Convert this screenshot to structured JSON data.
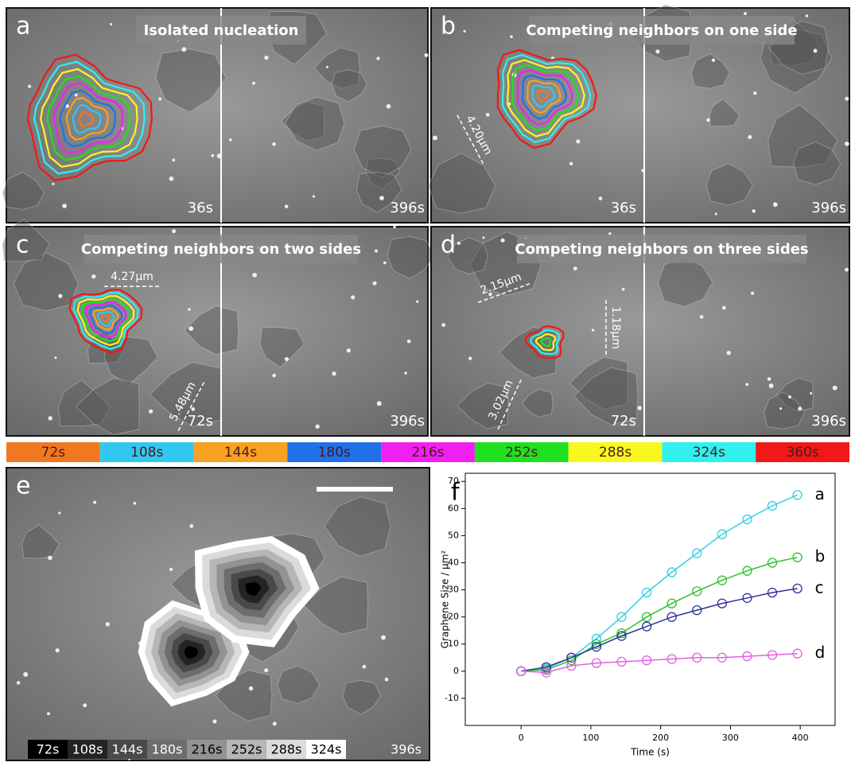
{
  "panels": [
    {
      "letter": "a",
      "title": "Isolated nucleation",
      "times": [
        "36s",
        "396s"
      ]
    },
    {
      "letter": "b",
      "title": "Competing neighbors on one side",
      "times": [
        "36s",
        "396s"
      ],
      "measurements": [
        "4.20μm"
      ]
    },
    {
      "letter": "c",
      "title": "Competing neighbors on two sides",
      "times": [
        "72s",
        "396s"
      ],
      "measurements": [
        "4.27μm",
        "5.48μm"
      ]
    },
    {
      "letter": "d",
      "title": "Competing neighbors on three sides",
      "times": [
        "72s",
        "396s"
      ],
      "measurements": [
        "2.15μm",
        "1.18μm",
        "3.02μm"
      ]
    }
  ],
  "colorbar": {
    "labels": [
      "72s",
      "108s",
      "144s",
      "180s",
      "216s",
      "252s",
      "288s",
      "324s",
      "360s"
    ],
    "colors": [
      "#f07820",
      "#30c8f0",
      "#f8a020",
      "#2070e8",
      "#f020f0",
      "#20e020",
      "#f8f820",
      "#30f0f0",
      "#f01818"
    ]
  },
  "panel_e": {
    "letter": "e",
    "legend": [
      "72s",
      "108s",
      "144s",
      "180s",
      "216s",
      "252s",
      "288s",
      "324s"
    ],
    "time": "396s"
  },
  "chart_data": {
    "type": "line",
    "panel_label": "f",
    "xlabel": "Time (s)",
    "ylabel": "Graphene Size / μm²",
    "x": [
      0,
      36,
      72,
      108,
      144,
      180,
      216,
      252,
      288,
      324,
      360,
      396
    ],
    "series": [
      {
        "name": "a",
        "color": "#30d0e0",
        "values": [
          0,
          1,
          5,
          12,
          20,
          29,
          36.5,
          43.5,
          50.5,
          56,
          61,
          65
        ]
      },
      {
        "name": "b",
        "color": "#30c030",
        "values": [
          0,
          0.5,
          4,
          10,
          14,
          20,
          25,
          29.5,
          33.5,
          37,
          40,
          42
        ]
      },
      {
        "name": "c",
        "color": "#303098",
        "values": [
          0,
          1.5,
          5,
          9,
          13,
          16.5,
          20,
          22.5,
          25,
          27,
          29,
          30.5
        ]
      },
      {
        "name": "d",
        "color": "#e060e0",
        "values": [
          0,
          -0.5,
          2,
          3,
          3.5,
          4,
          4.5,
          5,
          5,
          5.5,
          6,
          6.5
        ]
      }
    ],
    "xlim": [
      -80,
      450
    ],
    "ylim": [
      -20,
      73
    ],
    "xticks": [
      0,
      100,
      200,
      300,
      400
    ],
    "yticks": [
      -10,
      0,
      10,
      20,
      30,
      40,
      50,
      60,
      70
    ],
    "grid": false
  }
}
